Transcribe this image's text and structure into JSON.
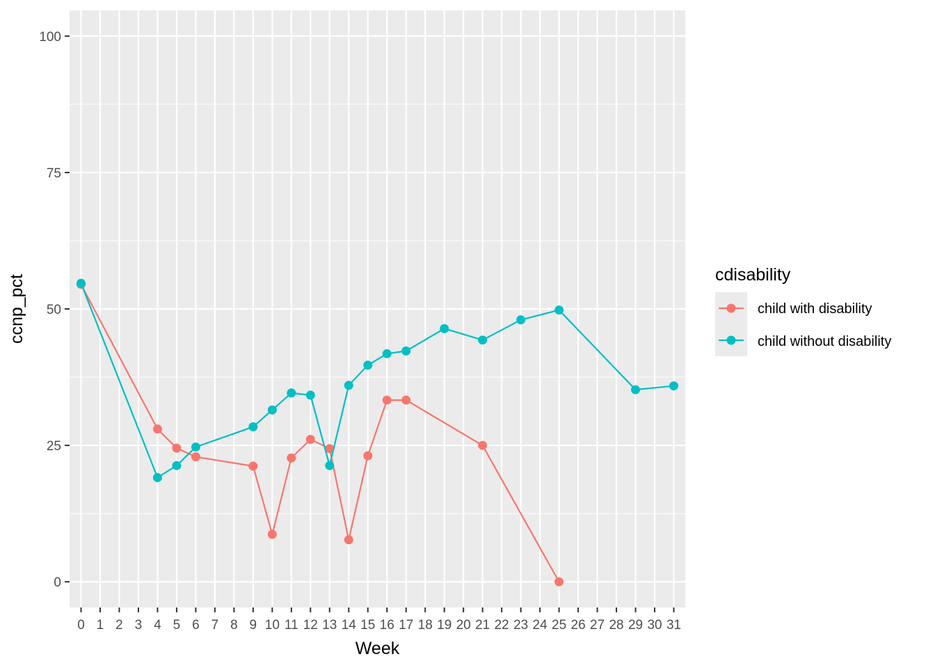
{
  "chart_data": {
    "type": "line",
    "xlabel": "Week",
    "ylabel": "ccnp_pct",
    "x_categories": [
      "0",
      "1",
      "2",
      "3",
      "4",
      "5",
      "6",
      "7",
      "8",
      "9",
      "10",
      "11",
      "12",
      "13",
      "14",
      "15",
      "16",
      "17",
      "18",
      "19",
      "20",
      "21",
      "22",
      "23",
      "24",
      "25",
      "26",
      "27",
      "28",
      "29",
      "30",
      "31"
    ],
    "y_ticks": [
      0,
      25,
      50,
      75,
      100
    ],
    "ylim": [
      -4.7,
      104.7
    ],
    "grid": true,
    "legend": {
      "title": "cdisability",
      "position": "right"
    },
    "series": [
      {
        "name": "child with disability",
        "color": "#F8766D",
        "points": [
          {
            "x": 0,
            "y": 54.5
          },
          {
            "x": 4,
            "y": 28.0
          },
          {
            "x": 5,
            "y": 24.5
          },
          {
            "x": 6,
            "y": 22.9
          },
          {
            "x": 9,
            "y": 21.2
          },
          {
            "x": 10,
            "y": 8.7
          },
          {
            "x": 11,
            "y": 22.7
          },
          {
            "x": 12,
            "y": 26.1
          },
          {
            "x": 13,
            "y": 24.4
          },
          {
            "x": 14,
            "y": 7.7
          },
          {
            "x": 15,
            "y": 23.1
          },
          {
            "x": 16,
            "y": 33.3
          },
          {
            "x": 17,
            "y": 33.3
          },
          {
            "x": 21,
            "y": 25.0
          },
          {
            "x": 25,
            "y": 0.0
          }
        ]
      },
      {
        "name": "child without disability",
        "color": "#00BFC4",
        "points": [
          {
            "x": 0,
            "y": 54.7
          },
          {
            "x": 4,
            "y": 19.1
          },
          {
            "x": 5,
            "y": 21.3
          },
          {
            "x": 6,
            "y": 24.7
          },
          {
            "x": 9,
            "y": 28.4
          },
          {
            "x": 10,
            "y": 31.5
          },
          {
            "x": 11,
            "y": 34.6
          },
          {
            "x": 12,
            "y": 34.2
          },
          {
            "x": 13,
            "y": 21.3
          },
          {
            "x": 14,
            "y": 36.0
          },
          {
            "x": 15,
            "y": 39.7
          },
          {
            "x": 16,
            "y": 41.8
          },
          {
            "x": 17,
            "y": 42.3
          },
          {
            "x": 19,
            "y": 46.4
          },
          {
            "x": 21,
            "y": 44.3
          },
          {
            "x": 23,
            "y": 48.0
          },
          {
            "x": 25,
            "y": 49.8
          },
          {
            "x": 29,
            "y": 35.2
          },
          {
            "x": 31,
            "y": 35.9
          }
        ]
      }
    ]
  }
}
